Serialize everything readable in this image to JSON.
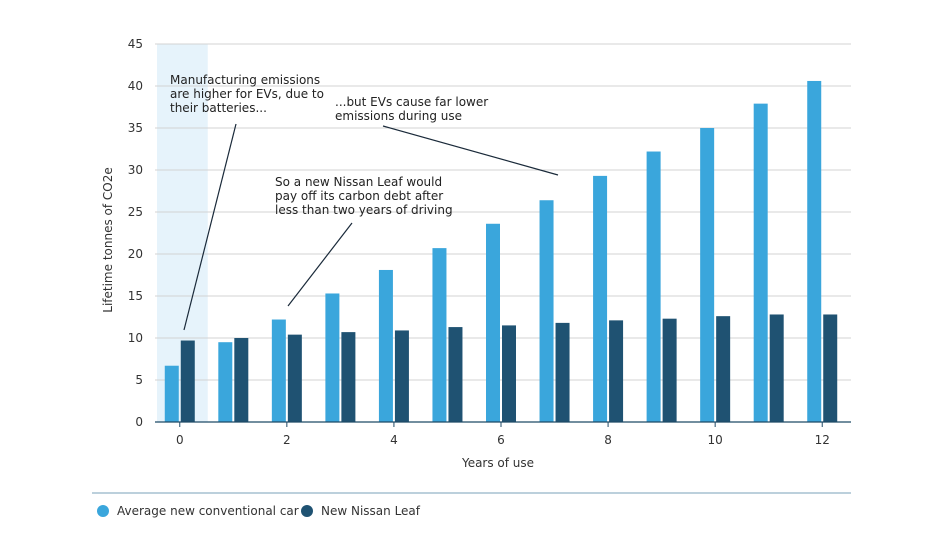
{
  "chart_data": {
    "type": "bar",
    "xlabel": "Years of use",
    "ylabel": "Lifetime tonnes of CO2e",
    "ylim": [
      0,
      45
    ],
    "yticks": [
      0,
      5,
      10,
      15,
      20,
      25,
      30,
      35,
      40,
      45
    ],
    "x": [
      0,
      1,
      2,
      3,
      4,
      5,
      6,
      7,
      8,
      9,
      10,
      11,
      12
    ],
    "xtick_labels": [
      "0",
      "2",
      "4",
      "6",
      "8",
      "10",
      "12"
    ],
    "xtick_values": [
      0,
      2,
      4,
      6,
      8,
      10,
      12
    ],
    "grid": "horizontal",
    "legend_position": "bottom-left",
    "highlight_band_x": [
      0
    ],
    "series": [
      {
        "name": "Average new conventional car",
        "color": "#3aa6dc",
        "values": [
          6.7,
          9.5,
          12.2,
          15.3,
          18.1,
          20.7,
          23.6,
          26.4,
          29.3,
          32.2,
          35.0,
          37.9,
          40.6
        ]
      },
      {
        "name": "New Nissan Leaf",
        "color": "#1f5272",
        "values": [
          9.7,
          10.0,
          10.4,
          10.7,
          10.9,
          11.3,
          11.5,
          11.8,
          12.1,
          12.3,
          12.6,
          12.8,
          12.8
        ]
      }
    ],
    "annotations": [
      {
        "lines": [
          "Manufacturing emissions",
          "are higher for EVs, due to",
          "their batteries..."
        ],
        "target_x": 0,
        "target_y": 11
      },
      {
        "lines": [
          "...but EVs cause far lower",
          "emissions during use"
        ],
        "target_x": 7.5,
        "target_y": 29.5
      },
      {
        "lines": [
          "So a new Nissan Leaf would",
          "pay off its carbon debt after",
          "less than two years of driving"
        ],
        "target_x": 2,
        "target_y": 13.5
      }
    ]
  }
}
